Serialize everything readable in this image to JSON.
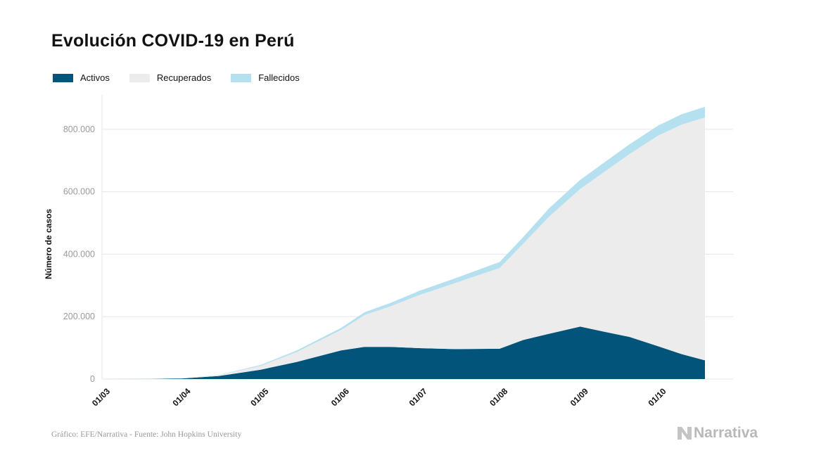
{
  "title": "Evolución COVID-19 en Perú",
  "source": "Gráfico: EFE/Narrativa - Fuente: John Hopkins University",
  "brand": "Narrativa",
  "colors": {
    "activos": "#02547b",
    "recuperados": "#ececec",
    "fallecidos": "#b5e0ef",
    "grid": "#e6e6e6"
  },
  "icons": {
    "brand_logo": "narrativa-n-icon"
  },
  "chart_data": {
    "type": "area",
    "title": "Evolución COVID-19 en Perú",
    "xlabel": "",
    "ylabel": "Número de casos",
    "x_tick_labels": [
      "01/03",
      "01/04",
      "01/05",
      "01/06",
      "01/07",
      "01/08",
      "01/09",
      "01/10"
    ],
    "y_tick_labels": [
      "0",
      "200.000",
      "400.000",
      "600.000",
      "800.000"
    ],
    "y_ticks": [
      0,
      200000,
      400000,
      600000,
      800000
    ],
    "ylim": [
      0,
      910000
    ],
    "xlim": [
      "2020-03-01",
      "2020-10-19"
    ],
    "stacked": true,
    "grid": true,
    "legend_position": "top-left",
    "series": [
      {
        "name": "Activos",
        "color": "#02547b",
        "x": [
          "2020-03-01",
          "2020-03-20",
          "2020-04-01",
          "2020-04-15",
          "2020-05-01",
          "2020-05-15",
          "2020-06-01",
          "2020-06-10",
          "2020-06-20",
          "2020-07-01",
          "2020-07-15",
          "2020-08-01",
          "2020-08-10",
          "2020-08-20",
          "2020-09-01",
          "2020-09-10",
          "2020-09-20",
          "2020-10-01",
          "2020-10-10",
          "2020-10-19"
        ],
        "values": [
          0,
          300,
          2000,
          10000,
          30000,
          55000,
          92000,
          103000,
          103000,
          99000,
          96000,
          97000,
          125000,
          145000,
          168000,
          152000,
          135000,
          105000,
          80000,
          60000
        ]
      },
      {
        "name": "Recuperados",
        "color": "#ececec",
        "x": [
          "2020-03-01",
          "2020-03-20",
          "2020-04-01",
          "2020-04-15",
          "2020-05-01",
          "2020-05-15",
          "2020-06-01",
          "2020-06-10",
          "2020-06-20",
          "2020-07-01",
          "2020-07-15",
          "2020-08-01",
          "2020-08-10",
          "2020-08-20",
          "2020-09-01",
          "2020-09-10",
          "2020-09-20",
          "2020-10-01",
          "2020-10-10",
          "2020-10-19"
        ],
        "values": [
          0,
          0,
          500,
          3000,
          12000,
          32000,
          65000,
          102000,
          130000,
          170000,
          212000,
          259000,
          308000,
          375000,
          441000,
          510000,
          586000,
          675000,
          735000,
          778000
        ]
      },
      {
        "name": "Fallecidos",
        "color": "#b5e0ef",
        "x": [
          "2020-03-01",
          "2020-03-20",
          "2020-04-01",
          "2020-04-15",
          "2020-05-01",
          "2020-05-15",
          "2020-06-01",
          "2020-06-10",
          "2020-06-20",
          "2020-07-01",
          "2020-07-15",
          "2020-08-01",
          "2020-08-10",
          "2020-08-20",
          "2020-09-01",
          "2020-09-10",
          "2020-09-20",
          "2020-10-01",
          "2020-10-10",
          "2020-10-19"
        ],
        "values": [
          0,
          0,
          100,
          500,
          3000,
          5000,
          7000,
          9000,
          11000,
          13000,
          15000,
          19000,
          21000,
          27000,
          29000,
          30000,
          31000,
          32000,
          33000,
          34000
        ]
      }
    ]
  }
}
